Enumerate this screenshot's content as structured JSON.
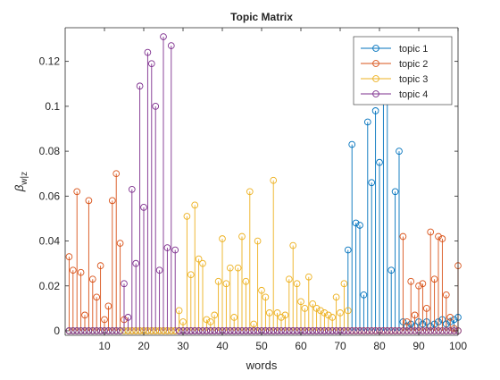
{
  "chart_data": {
    "type": "stem",
    "title": "Topic Matrix",
    "xlabel": "words",
    "ylabel_symbol": "β",
    "ylabel_subscript": "w|z",
    "xlim": [
      0,
      100
    ],
    "ylim": [
      -0.002,
      0.135
    ],
    "x_ticks": [
      10,
      20,
      30,
      40,
      50,
      60,
      70,
      80,
      90,
      100
    ],
    "y_ticks": [
      0,
      0.02,
      0.04,
      0.06,
      0.08,
      0.1,
      0.12
    ],
    "y_tick_labels": [
      "0",
      "0.02",
      "0.04",
      "0.06",
      "0.08",
      "0.1",
      "0.12"
    ],
    "legend_placement": "top-right",
    "grid": false,
    "series": [
      {
        "name": "topic 1",
        "color": "#0072BD",
        "values": [
          0,
          0,
          0,
          0,
          0,
          0,
          0,
          0,
          0,
          0,
          0,
          0,
          0,
          0,
          0,
          0,
          0,
          0,
          0,
          0,
          0,
          0,
          0,
          0,
          0,
          0,
          0,
          0,
          0,
          0,
          0,
          0,
          0,
          0,
          0,
          0,
          0,
          0,
          0,
          0,
          0,
          0,
          0,
          0,
          0,
          0,
          0,
          0,
          0,
          0,
          0,
          0,
          0,
          0,
          0,
          0,
          0,
          0,
          0,
          0,
          0,
          0,
          0,
          0,
          0,
          0,
          0,
          0,
          0,
          0,
          0,
          0.036,
          0.083,
          0.048,
          0.047,
          0.016,
          0.093,
          0.066,
          0.098,
          0.075,
          0.103,
          0.114,
          0.027,
          0.062,
          0.08,
          0.004,
          0.002,
          0.003,
          0.002,
          0.004,
          0.003,
          0.004,
          0.002,
          0.003,
          0.004,
          0.005,
          0.003,
          0.004,
          0.005,
          0.006
        ]
      },
      {
        "name": "topic 2",
        "color": "#D95319",
        "values": [
          0.033,
          0.027,
          0.062,
          0.026,
          0.007,
          0.058,
          0.023,
          0.015,
          0.029,
          0.005,
          0.011,
          0.058,
          0.07,
          0.039,
          0.005,
          0,
          0,
          0,
          0,
          0,
          0,
          0,
          0,
          0,
          0,
          0,
          0,
          0,
          0,
          0,
          0,
          0,
          0,
          0,
          0,
          0,
          0,
          0,
          0,
          0,
          0,
          0,
          0,
          0,
          0,
          0,
          0,
          0,
          0,
          0,
          0,
          0,
          0,
          0,
          0,
          0,
          0,
          0,
          0,
          0,
          0,
          0,
          0,
          0,
          0,
          0,
          0,
          0,
          0,
          0,
          0,
          0,
          0,
          0,
          0,
          0,
          0,
          0,
          0,
          0,
          0,
          0,
          0,
          0,
          0,
          0.042,
          0.004,
          0.022,
          0.007,
          0.02,
          0.021,
          0.01,
          0.044,
          0.023,
          0.042,
          0.041,
          0.016,
          0.006,
          0.001,
          0.029
        ]
      },
      {
        "name": "topic 3",
        "color": "#EDB120",
        "values": [
          0,
          0,
          0,
          0,
          0,
          0,
          0,
          0,
          0,
          0,
          0,
          0,
          0,
          0,
          0,
          0,
          0,
          0,
          0,
          0,
          0,
          0,
          0,
          0,
          0,
          0,
          0,
          0,
          0.009,
          0.004,
          0.051,
          0.025,
          0.056,
          0.032,
          0.03,
          0.005,
          0.004,
          0.007,
          0.022,
          0.041,
          0.021,
          0.028,
          0.006,
          0.028,
          0.042,
          0.022,
          0.062,
          0.003,
          0.04,
          0.018,
          0.015,
          0.008,
          0.067,
          0.008,
          0.006,
          0.007,
          0.023,
          0.038,
          0.021,
          0.013,
          0.01,
          0.024,
          0.012,
          0.01,
          0.009,
          0.008,
          0.007,
          0.006,
          0.015,
          0.008,
          0.021,
          0.009,
          0,
          0,
          0,
          0,
          0,
          0,
          0,
          0,
          0,
          0,
          0,
          0,
          0,
          0,
          0,
          0,
          0,
          0,
          0,
          0,
          0,
          0,
          0,
          0,
          0,
          0,
          0,
          0
        ]
      },
      {
        "name": "topic 4",
        "color": "#7E2F8E",
        "values": [
          0,
          0,
          0,
          0,
          0,
          0,
          0,
          0,
          0,
          0,
          0,
          0,
          0,
          0,
          0.021,
          0.006,
          0.063,
          0.03,
          0.109,
          0.055,
          0.124,
          0.119,
          0.1,
          0.027,
          0.131,
          0.037,
          0.127,
          0.036,
          0,
          0,
          0,
          0,
          0,
          0,
          0,
          0,
          0,
          0,
          0,
          0,
          0,
          0,
          0,
          0,
          0,
          0,
          0,
          0,
          0,
          0,
          0,
          0,
          0,
          0,
          0,
          0,
          0,
          0,
          0,
          0,
          0,
          0,
          0,
          0,
          0,
          0,
          0,
          0,
          0,
          0,
          0,
          0,
          0,
          0,
          0,
          0,
          0,
          0,
          0,
          0,
          0,
          0,
          0,
          0,
          0,
          0,
          0,
          0,
          0,
          0,
          0,
          0,
          0,
          0,
          0,
          0,
          0,
          0,
          0,
          0
        ]
      }
    ]
  }
}
